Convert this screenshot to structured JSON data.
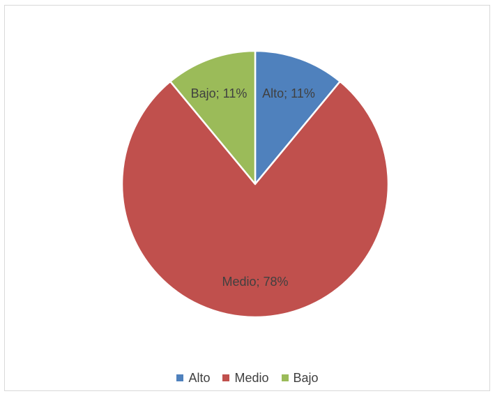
{
  "chart_data": {
    "type": "pie",
    "categories": [
      "Alto",
      "Medio",
      "Bajo"
    ],
    "values": [
      11,
      78,
      11
    ],
    "value_suffix": "%",
    "colors": [
      "#4f81bd",
      "#c0504d",
      "#9bbb59"
    ],
    "data_labels": [
      "Alto; 11%",
      "Medio; 78%",
      "Bajo; 11%"
    ],
    "legend": {
      "position": "bottom",
      "entries": [
        "Alto",
        "Medio",
        "Bajo"
      ]
    },
    "title": "",
    "start_angle": "12 o'clock",
    "direction": "clockwise"
  }
}
